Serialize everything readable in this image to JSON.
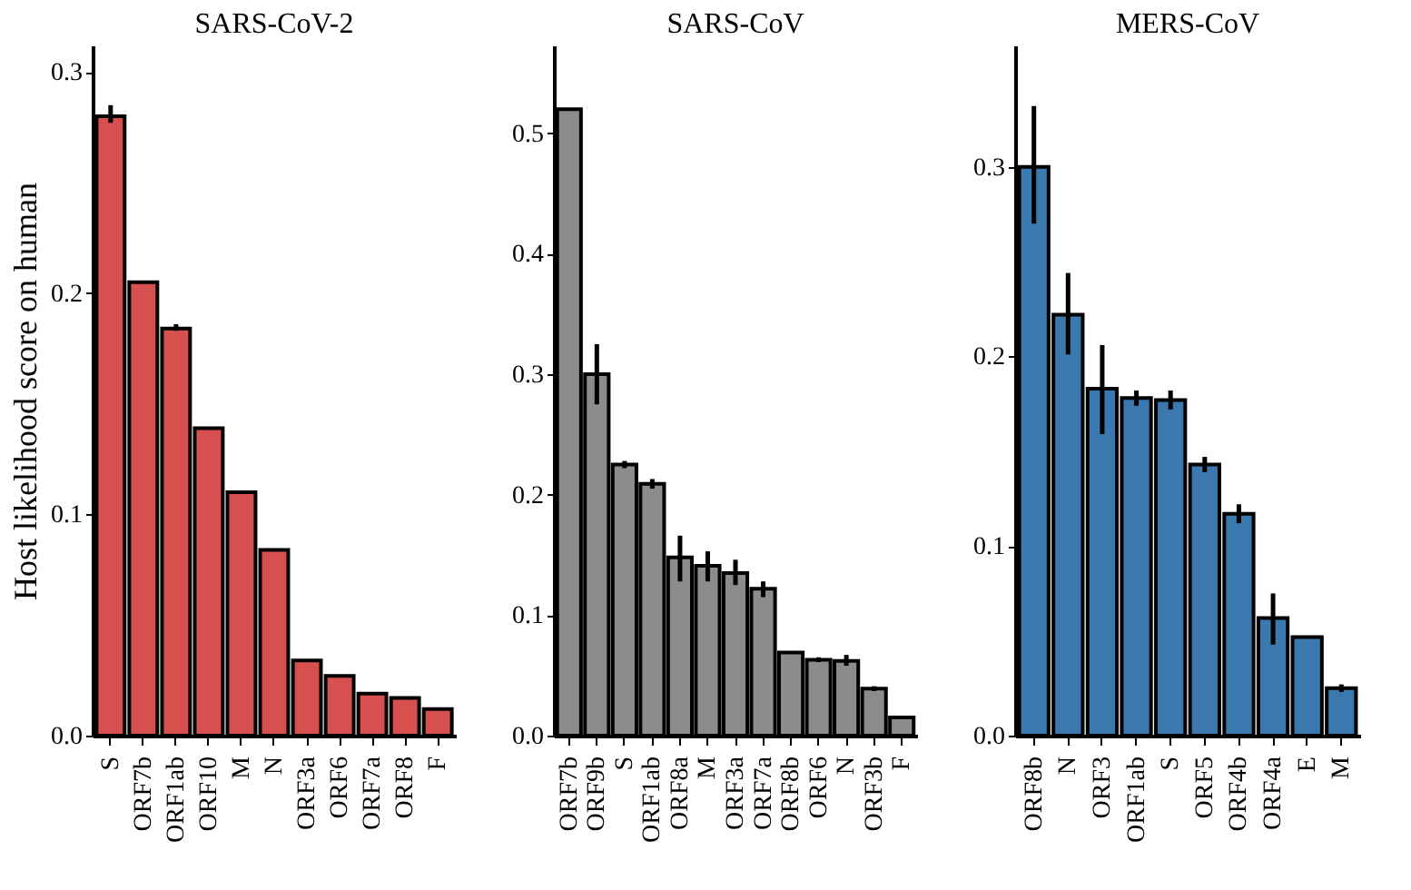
{
  "chart_data": [
    {
      "type": "bar",
      "title": "SARS-CoV-2",
      "ylabel": "Host likelihood score on human",
      "categories": [
        "S",
        "ORF7b",
        "ORF1ab",
        "ORF10",
        "M",
        "N",
        "ORF3a",
        "ORF6",
        "ORF7a",
        "ORF8",
        "F"
      ],
      "series": [
        {
          "color": "#d65050",
          "values": [
            0.28,
            0.205,
            0.184,
            0.139,
            0.11,
            0.084,
            0.034,
            0.027,
            0.019,
            0.017,
            0.012
          ],
          "errors": [
            [
              0.277,
              0.285
            ],
            null,
            [
              0.183,
              0.186
            ],
            null,
            null,
            null,
            null,
            null,
            null,
            null,
            null
          ]
        }
      ],
      "ylim": [
        0,
        0.312
      ],
      "yticks": [
        {
          "value": 0,
          "label": "0.0"
        },
        {
          "value": 0.1,
          "label": "0.1"
        },
        {
          "value": 0.2,
          "label": "0.2"
        },
        {
          "value": 0.3,
          "label": "0.3"
        }
      ],
      "grid": false
    },
    {
      "type": "bar",
      "title": "SARS-CoV",
      "categories": [
        "ORF7b",
        "ORF9b",
        "S",
        "ORF1ab",
        "ORF8a",
        "M",
        "ORF3a",
        "ORF7a",
        "ORF8b",
        "ORF6",
        "N",
        "ORF3b",
        "F"
      ],
      "series": [
        {
          "color": "#8c8c8c",
          "values": [
            0.52,
            0.3,
            0.225,
            0.209,
            0.148,
            0.141,
            0.135,
            0.122,
            0.069,
            0.063,
            0.062,
            0.039,
            0.015
          ],
          "errors": [
            null,
            [
              0.275,
              0.325
            ],
            [
              0.222,
              0.228
            ],
            [
              0.205,
              0.213
            ],
            [
              0.128,
              0.166
            ],
            [
              0.128,
              0.153
            ],
            [
              0.125,
              0.146
            ],
            [
              0.115,
              0.128
            ],
            null,
            [
              0.061,
              0.065
            ],
            [
              0.058,
              0.067
            ],
            [
              0.037,
              0.041
            ],
            null
          ]
        }
      ],
      "ylim": [
        0,
        0.573
      ],
      "yticks": [
        {
          "value": 0,
          "label": "0.0"
        },
        {
          "value": 0.1,
          "label": "0.1"
        },
        {
          "value": 0.2,
          "label": "0.2"
        },
        {
          "value": 0.3,
          "label": "0.3"
        },
        {
          "value": 0.4,
          "label": "0.4"
        },
        {
          "value": 0.5,
          "label": "0.5"
        }
      ],
      "grid": false
    },
    {
      "type": "bar",
      "title": "MERS-CoV",
      "categories": [
        "ORF8b",
        "N",
        "ORF3",
        "ORF1ab",
        "S",
        "ORF5",
        "ORF4b",
        "ORF4a",
        "E",
        "M"
      ],
      "series": [
        {
          "color": "#3a78ae",
          "values": [
            0.3,
            0.222,
            0.183,
            0.178,
            0.177,
            0.143,
            0.117,
            0.062,
            0.052,
            0.025
          ],
          "errors": [
            [
              0.27,
              0.332
            ],
            [
              0.201,
              0.244
            ],
            [
              0.159,
              0.206
            ],
            [
              0.174,
              0.182
            ],
            [
              0.172,
              0.182
            ],
            [
              0.139,
              0.147
            ],
            [
              0.112,
              0.122
            ],
            [
              0.048,
              0.075
            ],
            null,
            [
              0.023,
              0.027
            ]
          ]
        }
      ],
      "ylim": [
        0,
        0.364
      ],
      "yticks": [
        {
          "value": 0,
          "label": "0.0"
        },
        {
          "value": 0.1,
          "label": "0.1"
        },
        {
          "value": 0.2,
          "label": "0.2"
        },
        {
          "value": 0.3,
          "label": "0.3"
        }
      ],
      "grid": false
    }
  ]
}
